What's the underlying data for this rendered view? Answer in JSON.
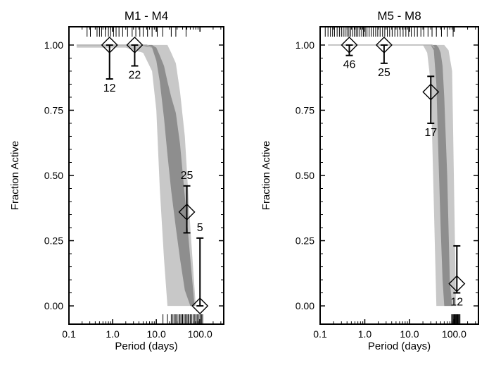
{
  "colors": {
    "band_outer": "#c8c8c8",
    "band_inner": "#8e8e8e",
    "median_line": "#b0b0b0",
    "ink": "#000000",
    "background": "#ffffff"
  },
  "chart_data": [
    {
      "type": "line",
      "title": "M1 - M4",
      "xlabel": "Period (days)",
      "ylabel": "Fraction Active",
      "xscale": "log",
      "xlim": [
        0.1,
        350
      ],
      "ylim": [
        -0.07,
        1.07
      ],
      "xticks": [
        0.1,
        1.0,
        10.0,
        100.0
      ],
      "xtick_labels": [
        "0.1",
        "1.0",
        "10.0",
        "100.0"
      ],
      "yticks": [
        0.0,
        0.25,
        0.5,
        0.75,
        1.0
      ],
      "ytick_labels": [
        "0.00",
        "0.25",
        "0.50",
        "0.75",
        "1.00"
      ],
      "grid": false,
      "points": [
        {
          "x": 0.85,
          "y": 1.0,
          "err_low": 0.87,
          "err_high": 1.0,
          "n": "12",
          "label_pos": "below"
        },
        {
          "x": 3.2,
          "y": 1.0,
          "err_low": 0.92,
          "err_high": 1.0,
          "n": "22",
          "label_pos": "below"
        },
        {
          "x": 50,
          "y": 0.36,
          "err_low": 0.28,
          "err_high": 0.46,
          "n": "25",
          "label_pos": "above"
        },
        {
          "x": 100,
          "y": 0.0,
          "err_low": 0.0,
          "err_high": 0.26,
          "n": "5",
          "label_pos": "above"
        }
      ],
      "outer_band": {
        "x": [
          0.15,
          2,
          5,
          8,
          10,
          12,
          15,
          18,
          22,
          28,
          35,
          45,
          60,
          80,
          100
        ],
        "upper": [
          1.0,
          1.0,
          1.0,
          1.0,
          1.0,
          1.0,
          1.0,
          1.0,
          0.97,
          0.93,
          0.82,
          0.65,
          0.3,
          0.0,
          0.0
        ],
        "lower": [
          0.99,
          0.99,
          0.97,
          0.9,
          0.75,
          0.45,
          0.18,
          0.0,
          0.0,
          0.0,
          0.0,
          0.0,
          0.0,
          0.0,
          0.0
        ]
      },
      "inner_band": {
        "x": [
          0.15,
          4,
          8,
          10,
          12,
          15,
          18,
          22,
          28,
          35,
          45,
          60,
          75,
          90
        ],
        "upper": [
          1.0,
          1.0,
          1.0,
          0.99,
          0.96,
          0.92,
          0.86,
          0.8,
          0.74,
          0.62,
          0.42,
          0.18,
          0.0,
          0.0
        ],
        "lower": [
          1.0,
          1.0,
          0.99,
          0.94,
          0.86,
          0.72,
          0.58,
          0.44,
          0.3,
          0.18,
          0.06,
          0.0,
          0.0,
          0.0
        ]
      },
      "median_line": {
        "x": [
          0.15,
          6,
          8
        ],
        "y": [
          1.0,
          1.0,
          0.99
        ]
      },
      "rug_top": [
        0.26,
        0.31,
        0.44,
        0.5,
        0.56,
        0.68,
        0.8,
        0.9,
        1.05,
        1.2,
        1.4,
        1.7,
        2.2,
        2.8,
        3.4,
        4.2,
        5.0,
        6.3,
        8.0,
        10.5,
        14.0,
        22.0,
        28.0,
        48.0
      ],
      "rug_bottom": [
        14.2,
        18.0,
        22.0,
        24.0,
        26.0,
        28.0,
        30.0,
        33.0,
        35.0,
        38.0,
        40.0,
        43.0,
        46.0,
        50.0,
        53.0,
        56.0,
        60.0,
        65.0,
        70.0,
        76.0,
        82.0,
        88.0,
        95.0,
        102.0,
        108.0,
        115.0
      ]
    },
    {
      "type": "line",
      "title": "M5 - M8",
      "xlabel": "Period (days)",
      "ylabel": "Fraction Active",
      "xscale": "log",
      "xlim": [
        0.1,
        350
      ],
      "ylim": [
        -0.07,
        1.07
      ],
      "xticks": [
        0.1,
        1.0,
        10.0,
        100.0
      ],
      "xtick_labels": [
        "0.1",
        "1.0",
        "10.0",
        "100.0"
      ],
      "yticks": [
        0.0,
        0.25,
        0.5,
        0.75,
        1.0
      ],
      "ytick_labels": [
        "0.00",
        "0.25",
        "0.50",
        "0.75",
        "1.00"
      ],
      "grid": false,
      "points": [
        {
          "x": 0.45,
          "y": 1.0,
          "err_low": 0.96,
          "err_high": 1.0,
          "n": "46",
          "label_pos": "below"
        },
        {
          "x": 2.7,
          "y": 1.0,
          "err_low": 0.93,
          "err_high": 1.0,
          "n": "25",
          "label_pos": "below"
        },
        {
          "x": 30,
          "y": 0.82,
          "err_low": 0.7,
          "err_high": 0.88,
          "n": "17",
          "label_pos": "below"
        },
        {
          "x": 115,
          "y": 0.085,
          "err_low": 0.05,
          "err_high": 0.23,
          "n": "12",
          "label_pos": "below"
        }
      ],
      "outer_band": {
        "x": [
          0.15,
          20,
          25,
          30,
          35,
          40,
          45,
          50,
          60,
          75,
          90,
          110
        ],
        "upper": [
          1.0,
          1.0,
          1.0,
          1.0,
          1.0,
          1.0,
          1.0,
          1.0,
          1.0,
          0.98,
          0.9,
          0.0
        ],
        "lower": [
          1.0,
          1.0,
          0.97,
          0.85,
          0.4,
          0.0,
          0.0,
          0.0,
          0.0,
          0.0,
          0.0,
          0.0
        ]
      },
      "inner_band": {
        "x": [
          0.15,
          30,
          35,
          40,
          45,
          50,
          55,
          60,
          70,
          80,
          90
        ],
        "upper": [
          1.0,
          1.0,
          1.0,
          1.0,
          0.99,
          0.97,
          0.92,
          0.8,
          0.5,
          0.1,
          0.0
        ],
        "lower": [
          1.0,
          1.0,
          0.98,
          0.85,
          0.55,
          0.3,
          0.1,
          0.0,
          0.0,
          0.0,
          0.0
        ]
      },
      "median_line": {
        "x": [
          0.15,
          32,
          36
        ],
        "y": [
          1.0,
          1.0,
          0.99
        ]
      },
      "rug_top": [
        0.13,
        0.15,
        0.17,
        0.19,
        0.21,
        0.24,
        0.27,
        0.3,
        0.33,
        0.36,
        0.4,
        0.44,
        0.48,
        0.53,
        0.58,
        0.64,
        0.7,
        0.77,
        0.85,
        0.93,
        1.02,
        1.12,
        1.25,
        1.4,
        1.55,
        1.75,
        1.95,
        2.2,
        2.5,
        2.8,
        3.2,
        3.6,
        4.1,
        4.7,
        5.4,
        6.2,
        7.2,
        8.3,
        9.6,
        11.0,
        13.0,
        15.0,
        18.0,
        21.0,
        26.0,
        32.0,
        40.0,
        52.0,
        70.0,
        95.0
      ],
      "rug_bottom": [
        88.0,
        92.0,
        96.0,
        100.0,
        104.0,
        108.0,
        112.0,
        116.0,
        120.0,
        125.0,
        130.0,
        135.0
      ]
    }
  ]
}
